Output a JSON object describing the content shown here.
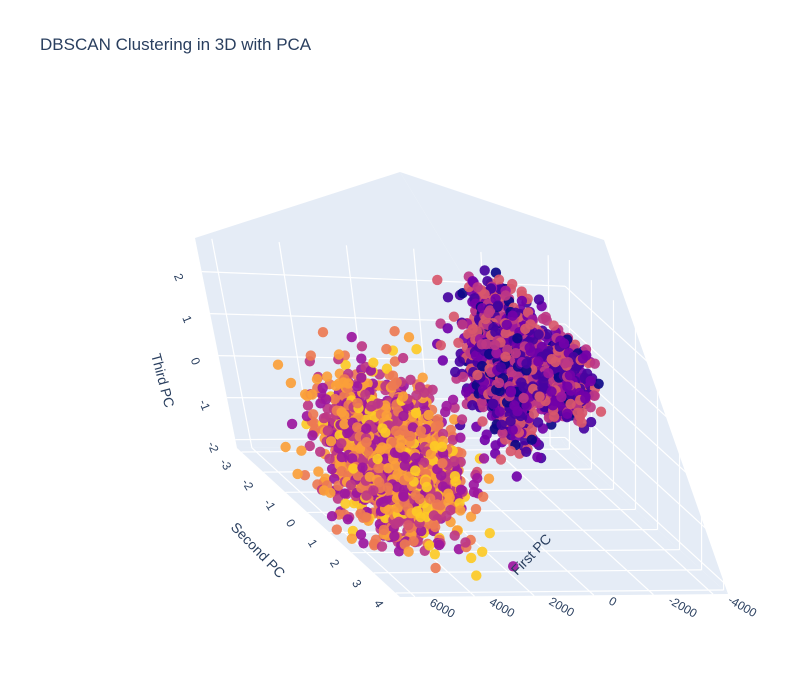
{
  "chart_data": {
    "type": "scatter3d",
    "title": "DBSCAN Clustering in 3D with PCA",
    "xaxis": {
      "title": "First PC",
      "ticks": [
        "-4000",
        "-2000",
        "0",
        "2000",
        "4000",
        "6000"
      ],
      "range": [
        -4500,
        6500
      ]
    },
    "yaxis": {
      "title": "Second PC",
      "ticks": [
        "-3",
        "-2",
        "-1",
        "0",
        "1",
        "2",
        "3",
        "4"
      ],
      "range": [
        -3.2,
        4.2
      ]
    },
    "zaxis": {
      "title": "Third PC",
      "ticks": [
        "-2",
        "-1",
        "0",
        "1",
        "2"
      ],
      "range": [
        -2.2,
        2.8
      ]
    },
    "grid": true,
    "legend": "none",
    "colorscale": [
      "#0d0887",
      "#46039f",
      "#7201a8",
      "#9c179e",
      "#bd3786",
      "#d8576b",
      "#ed7953",
      "#fb9f3a",
      "#fdca26",
      "#f0f921"
    ],
    "clusters": [
      {
        "center": [
          -1500,
          -1.5,
          0.8
        ],
        "spread": [
          500,
          0.5,
          0.8
        ],
        "count": 1300,
        "color_levels": [
          0.05,
          0.15,
          0.25,
          0.45,
          0.55
        ]
      },
      {
        "center": [
          -3000,
          -1.2,
          0.6
        ],
        "spread": [
          350,
          0.35,
          0.45
        ],
        "count": 600,
        "color_levels": [
          0.05,
          0.15,
          0.25,
          0.45,
          0.55
        ]
      },
      {
        "center": [
          4200,
          1.2,
          -0.3
        ],
        "spread": [
          900,
          0.7,
          0.9
        ],
        "count": 1700,
        "color_levels": [
          0.35,
          0.45,
          0.65,
          0.75,
          0.85
        ]
      }
    ]
  }
}
